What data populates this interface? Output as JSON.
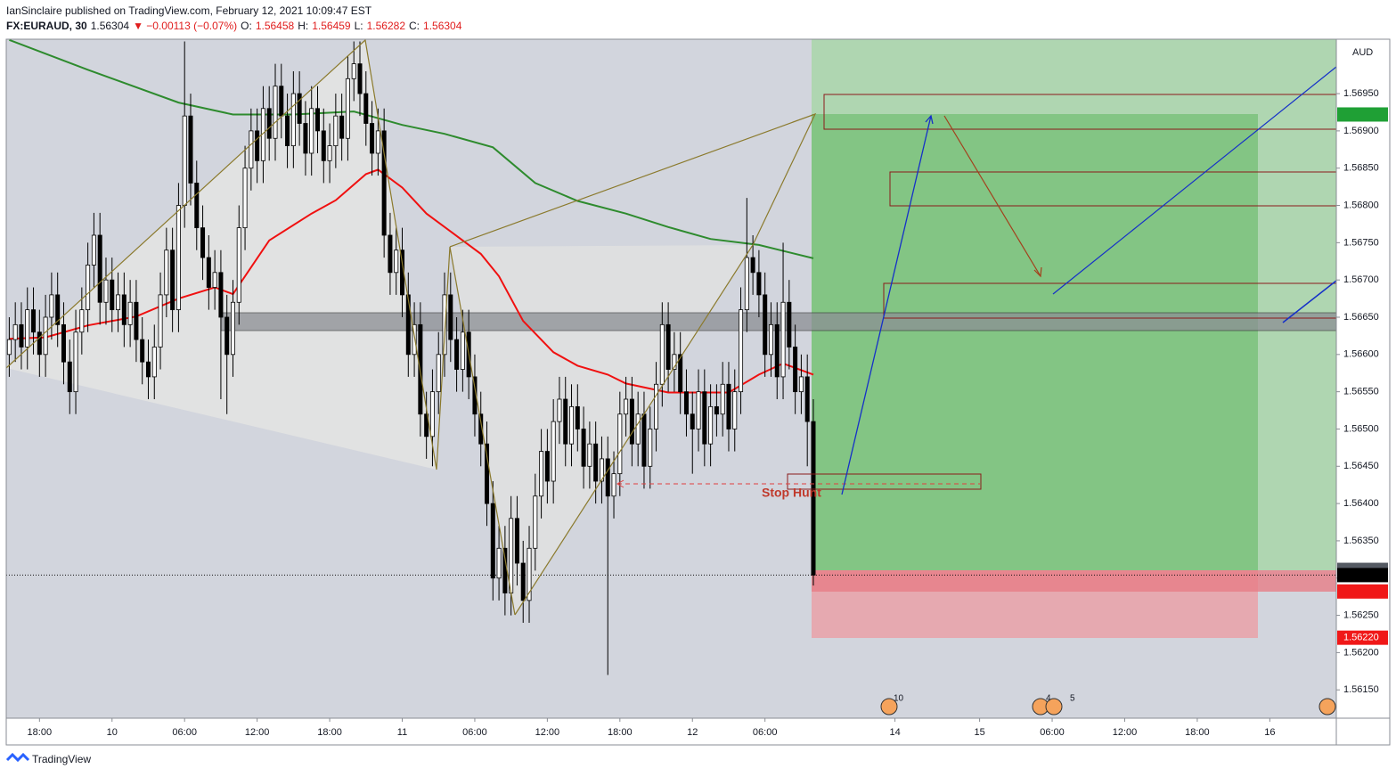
{
  "header": {
    "line1": "IanSinclaire published on TradingView.com, February 12, 2021 10:09:47 EST",
    "symbol": "FX:EURAUD, 30",
    "last": "1.56304",
    "change": "▼ −0.00113 (−0.07%)",
    "ohlc": [
      {
        "key": "O:",
        "value": "1.56458"
      },
      {
        "key": "H:",
        "value": "1.56459"
      },
      {
        "key": "L:",
        "value": "1.56282"
      },
      {
        "key": "C:",
        "value": "1.56304"
      }
    ]
  },
  "footer": "TradingView",
  "chart_data": {
    "type": "candlestick",
    "currency": "AUD",
    "annotation": "Stop Hunt",
    "events": [
      "10",
      "4",
      "5"
    ],
    "xlim": [
      -5.5,
      214.5
    ],
    "ylim": [
      1.56112,
      1.57023
    ],
    "grid": false,
    "up_color": "#ffffff",
    "down_color": "#000000",
    "xticks": [
      {
        "value": 0,
        "label": "18:00"
      },
      {
        "value": 12,
        "label": "10"
      },
      {
        "value": 24,
        "label": "06:00"
      },
      {
        "value": 36,
        "label": "12:00"
      },
      {
        "value": 48,
        "label": "18:00"
      },
      {
        "value": 60,
        "label": "11"
      },
      {
        "value": 72,
        "label": "06:00"
      },
      {
        "value": 84,
        "label": "12:00"
      },
      {
        "value": 96,
        "label": "18:00"
      },
      {
        "value": 108,
        "label": "12"
      },
      {
        "value": 120,
        "label": "06:00"
      },
      {
        "value": 141.5,
        "label": "14"
      },
      {
        "value": 155.5,
        "label": "15"
      },
      {
        "value": 167.5,
        "label": "06:00"
      },
      {
        "value": 179.5,
        "label": "12:00"
      },
      {
        "value": 191.5,
        "label": "18:00"
      },
      {
        "value": 203.5,
        "label": "16"
      }
    ],
    "yticks": [
      {
        "value": 1.5695,
        "label": "1.56950"
      },
      {
        "value": 1.569,
        "label": "1.56900"
      },
      {
        "value": 1.5685,
        "label": "1.56850"
      },
      {
        "value": 1.568,
        "label": "1.56800"
      },
      {
        "value": 1.5675,
        "label": "1.56750"
      },
      {
        "value": 1.567,
        "label": "1.56700"
      },
      {
        "value": 1.5665,
        "label": "1.56650"
      },
      {
        "value": 1.566,
        "label": "1.56600"
      },
      {
        "value": 1.5655,
        "label": "1.56550"
      },
      {
        "value": 1.565,
        "label": "1.56500"
      },
      {
        "value": 1.5645,
        "label": "1.56450"
      },
      {
        "value": 1.564,
        "label": "1.56400"
      },
      {
        "value": 1.5635,
        "label": "1.56350"
      },
      {
        "value": 1.563,
        "label": "1.56300"
      },
      {
        "value": 1.5625,
        "label": "1.56250"
      },
      {
        "value": 1.562,
        "label": "1.56200"
      },
      {
        "value": 1.5615,
        "label": "1.56150"
      }
    ],
    "price_labels": [
      {
        "value": 1.56922,
        "color": "#1fa035"
      },
      {
        "value": 1.56311,
        "color": "#555a63"
      },
      {
        "value": 1.56307,
        "color": "#555a63"
      },
      {
        "value": 1.56304,
        "color": "#000000"
      },
      {
        "value": 1.56282,
        "color": "#f01818"
      },
      {
        "value": 1.5622,
        "label": "1.56220",
        "color": "#f01818"
      }
    ],
    "candles": {
      "x": [
        -5,
        -4,
        -3,
        -2,
        -1,
        0,
        1,
        2,
        3,
        4,
        5,
        6,
        7,
        8,
        9,
        10,
        11,
        12,
        13,
        14,
        15,
        16,
        17,
        18,
        19,
        20,
        21,
        22,
        23,
        24,
        25,
        26,
        27,
        28,
        29,
        30,
        31,
        32,
        33,
        34,
        35,
        36,
        37,
        38,
        39,
        40,
        41,
        42,
        43,
        44,
        45,
        46,
        47,
        48,
        49,
        50,
        51,
        52,
        53,
        54,
        55,
        56,
        57,
        58,
        59,
        60,
        61,
        62,
        63,
        64,
        65,
        66,
        67,
        68,
        69,
        70,
        71,
        72,
        73,
        74,
        75,
        76,
        77,
        78,
        79,
        80,
        81,
        82,
        83,
        84,
        85,
        86,
        87,
        88,
        89,
        90,
        91,
        92,
        93,
        94,
        95,
        96,
        97,
        98,
        99,
        100,
        101,
        102,
        103,
        104,
        105,
        106,
        107,
        108,
        109,
        110,
        111,
        112,
        113,
        114,
        115,
        116,
        117,
        118,
        119,
        120,
        121,
        122,
        123,
        124,
        125,
        126,
        127,
        128
      ],
      "open": [
        1.566,
        1.5662,
        1.5664,
        1.5661,
        1.5666,
        1.5663,
        1.566,
        1.5665,
        1.5668,
        1.5664,
        1.5659,
        1.5655,
        1.5663,
        1.5666,
        1.5672,
        1.5676,
        1.5667,
        1.567,
        1.5666,
        1.5668,
        1.5664,
        1.5667,
        1.5662,
        1.5659,
        1.5657,
        1.5661,
        1.5668,
        1.5674,
        1.5666,
        1.568,
        1.5692,
        1.5683,
        1.5677,
        1.5673,
        1.5669,
        1.5671,
        1.5665,
        1.566,
        1.5667,
        1.5677,
        1.5685,
        1.569,
        1.5686,
        1.5693,
        1.5689,
        1.5696,
        1.5692,
        1.5688,
        1.5695,
        1.5691,
        1.5687,
        1.5693,
        1.569,
        1.5686,
        1.5688,
        1.5692,
        1.5689,
        1.5697,
        1.5699,
        1.5695,
        1.5691,
        1.5687,
        1.569,
        1.5676,
        1.5671,
        1.5674,
        1.5668,
        1.566,
        1.5664,
        1.5652,
        1.5649,
        1.5655,
        1.566,
        1.5668,
        1.5662,
        1.5658,
        1.5663,
        1.5657,
        1.5652,
        1.5648,
        1.564,
        1.563,
        1.5634,
        1.5628,
        1.5638,
        1.5632,
        1.5627,
        1.5634,
        1.5641,
        1.5647,
        1.5643,
        1.5651,
        1.5654,
        1.5648,
        1.5653,
        1.565,
        1.5645,
        1.5648,
        1.5643,
        1.5646,
        1.5641,
        1.5644,
        1.5652,
        1.5654,
        1.5648,
        1.5652,
        1.5645,
        1.565,
        1.5656,
        1.5664,
        1.5658,
        1.566,
        1.5655,
        1.5652,
        1.565,
        1.5655,
        1.5648,
        1.5653,
        1.5652,
        1.5656,
        1.565,
        1.5655,
        1.5666,
        1.5673,
        1.5671,
        1.5668,
        1.566,
        1.5664,
        1.5657,
        1.5667,
        1.5661,
        1.5655,
        1.5657,
        1.5651
      ],
      "high": [
        1.5665,
        1.5667,
        1.5667,
        1.5669,
        1.5669,
        1.5666,
        1.5668,
        1.5671,
        1.5671,
        1.5667,
        1.5662,
        1.5666,
        1.5669,
        1.5675,
        1.5679,
        1.5679,
        1.5673,
        1.5673,
        1.5671,
        1.5671,
        1.567,
        1.567,
        1.5665,
        1.5662,
        1.5664,
        1.5671,
        1.5677,
        1.5677,
        1.5683,
        1.5702,
        1.5695,
        1.5686,
        1.568,
        1.5676,
        1.5674,
        1.5674,
        1.5668,
        1.567,
        1.568,
        1.5688,
        1.5693,
        1.5693,
        1.5696,
        1.5696,
        1.5699,
        1.5699,
        1.5695,
        1.5698,
        1.5698,
        1.5694,
        1.5696,
        1.5696,
        1.5693,
        1.5691,
        1.5695,
        1.5695,
        1.57,
        1.5702,
        1.5702,
        1.5698,
        1.5694,
        1.5693,
        1.5693,
        1.5679,
        1.5677,
        1.5677,
        1.5671,
        1.5667,
        1.5667,
        1.5655,
        1.5658,
        1.5663,
        1.5671,
        1.5671,
        1.5665,
        1.5666,
        1.5666,
        1.566,
        1.5655,
        1.5651,
        1.5643,
        1.5637,
        1.5637,
        1.5641,
        1.5641,
        1.5635,
        1.5637,
        1.5644,
        1.565,
        1.565,
        1.5654,
        1.5657,
        1.5657,
        1.5656,
        1.5656,
        1.5653,
        1.5651,
        1.5651,
        1.5649,
        1.5649,
        1.5647,
        1.5655,
        1.5657,
        1.5657,
        1.5655,
        1.5655,
        1.5653,
        1.5659,
        1.5667,
        1.5667,
        1.5663,
        1.5663,
        1.5658,
        1.5655,
        1.5658,
        1.5658,
        1.5656,
        1.5656,
        1.5659,
        1.5659,
        1.5658,
        1.5669,
        1.5681,
        1.5676,
        1.5674,
        1.5671,
        1.5667,
        1.5667,
        1.5675,
        1.567,
        1.5664,
        1.566,
        1.566,
        1.5654
      ],
      "low": [
        1.5657,
        1.5659,
        1.5658,
        1.5658,
        1.566,
        1.5657,
        1.5657,
        1.5662,
        1.5661,
        1.5656,
        1.5652,
        1.5652,
        1.566,
        1.5663,
        1.5669,
        1.5664,
        1.5664,
        1.5663,
        1.5663,
        1.5661,
        1.5661,
        1.5659,
        1.5656,
        1.5654,
        1.5654,
        1.5658,
        1.5665,
        1.5663,
        1.5663,
        1.5677,
        1.568,
        1.5674,
        1.567,
        1.5666,
        1.5666,
        1.5654,
        1.5652,
        1.5657,
        1.5664,
        1.5674,
        1.5682,
        1.5683,
        1.5683,
        1.5686,
        1.5686,
        1.5689,
        1.5685,
        1.5685,
        1.5688,
        1.5684,
        1.5684,
        1.5687,
        1.5683,
        1.5683,
        1.5685,
        1.5686,
        1.5686,
        1.5694,
        1.5692,
        1.5688,
        1.5684,
        1.5684,
        1.5673,
        1.5668,
        1.5668,
        1.5665,
        1.5657,
        1.5657,
        1.5649,
        1.5646,
        1.5645,
        1.5652,
        1.5657,
        1.5659,
        1.5655,
        1.5655,
        1.5654,
        1.5649,
        1.5645,
        1.5637,
        1.5627,
        1.5627,
        1.5625,
        1.5625,
        1.5629,
        1.5624,
        1.5624,
        1.5631,
        1.5638,
        1.564,
        1.564,
        1.5648,
        1.5645,
        1.5645,
        1.5647,
        1.5642,
        1.5642,
        1.564,
        1.564,
        1.5617,
        1.5638,
        1.5641,
        1.5649,
        1.5645,
        1.5645,
        1.5642,
        1.5642,
        1.5647,
        1.5653,
        1.5655,
        1.5655,
        1.5652,
        1.5649,
        1.5644,
        1.5647,
        1.5645,
        1.5645,
        1.5649,
        1.5649,
        1.5647,
        1.5647,
        1.5652,
        1.5663,
        1.5668,
        1.5665,
        1.5657,
        1.5657,
        1.5654,
        1.5654,
        1.5658,
        1.5652,
        1.5652,
        1.5645,
        1.5629
      ],
      "close": [
        1.5662,
        1.5664,
        1.5661,
        1.5666,
        1.5663,
        1.566,
        1.5665,
        1.5668,
        1.5664,
        1.5659,
        1.5655,
        1.5663,
        1.5666,
        1.5672,
        1.5676,
        1.5667,
        1.567,
        1.5666,
        1.5668,
        1.5664,
        1.5667,
        1.5662,
        1.5659,
        1.5657,
        1.5661,
        1.5668,
        1.5674,
        1.5666,
        1.568,
        1.5692,
        1.5683,
        1.5677,
        1.5673,
        1.5669,
        1.5671,
        1.5665,
        1.566,
        1.5667,
        1.5677,
        1.5685,
        1.569,
        1.5686,
        1.5693,
        1.5689,
        1.5696,
        1.5692,
        1.5688,
        1.5695,
        1.5691,
        1.5687,
        1.5693,
        1.569,
        1.5686,
        1.5688,
        1.5692,
        1.5689,
        1.5697,
        1.5699,
        1.5695,
        1.5691,
        1.5687,
        1.569,
        1.5676,
        1.5671,
        1.5674,
        1.5668,
        1.566,
        1.5664,
        1.5652,
        1.5649,
        1.5655,
        1.566,
        1.5668,
        1.5662,
        1.5658,
        1.5663,
        1.5657,
        1.5652,
        1.5648,
        1.564,
        1.563,
        1.5634,
        1.5628,
        1.5638,
        1.5632,
        1.5627,
        1.5634,
        1.5641,
        1.5647,
        1.5643,
        1.5651,
        1.5654,
        1.5648,
        1.5653,
        1.565,
        1.5645,
        1.5648,
        1.5643,
        1.5646,
        1.5641,
        1.5644,
        1.5652,
        1.5654,
        1.5648,
        1.5652,
        1.5645,
        1.565,
        1.5656,
        1.5664,
        1.5658,
        1.566,
        1.5655,
        1.5652,
        1.565,
        1.5655,
        1.5648,
        1.5653,
        1.5652,
        1.5656,
        1.565,
        1.5655,
        1.5666,
        1.5673,
        1.5671,
        1.5668,
        1.566,
        1.5664,
        1.5657,
        1.5667,
        1.5661,
        1.5655,
        1.5657,
        1.5651,
        1.56304
      ]
    },
    "lines": [
      {
        "color": "#2e8b2e",
        "x": [
          -5,
          8,
          23,
          32,
          42,
          52,
          60,
          67,
          75,
          82,
          89,
          97,
          104,
          111,
          119,
          128
        ],
        "values": [
          1.57022,
          1.56982,
          1.56938,
          1.56922,
          1.56922,
          1.56926,
          1.56908,
          1.56896,
          1.56878,
          1.5683,
          1.56806,
          1.56789,
          1.56771,
          1.56755,
          1.56747,
          1.56729
        ]
      },
      {
        "color": "#f01010",
        "x": [
          -5,
          1,
          8,
          16,
          23,
          29,
          32,
          38,
          45,
          49,
          54,
          56,
          60,
          64,
          69,
          73,
          76,
          80,
          85,
          89,
          94,
          97,
          104,
          111,
          114,
          119,
          123,
          128
        ],
        "values": [
          1.56621,
          1.56623,
          1.56639,
          1.56651,
          1.56675,
          1.5669,
          1.56681,
          1.56753,
          1.56789,
          1.56807,
          1.56842,
          1.56848,
          1.56824,
          1.56789,
          1.56759,
          1.56735,
          1.56705,
          1.56645,
          1.56603,
          1.56585,
          1.56573,
          1.56561,
          1.56549,
          1.56549,
          1.56549,
          1.56573,
          1.56588,
          1.56573
        ]
      }
    ]
  }
}
